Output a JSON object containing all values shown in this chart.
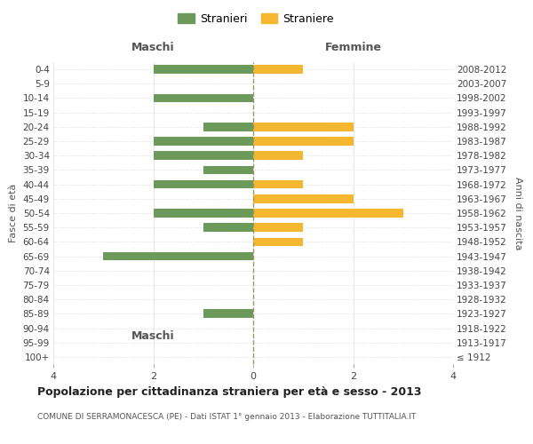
{
  "age_groups": [
    "100+",
    "95-99",
    "90-94",
    "85-89",
    "80-84",
    "75-79",
    "70-74",
    "65-69",
    "60-64",
    "55-59",
    "50-54",
    "45-49",
    "40-44",
    "35-39",
    "30-34",
    "25-29",
    "20-24",
    "15-19",
    "10-14",
    "5-9",
    "0-4"
  ],
  "birth_years": [
    "≤ 1912",
    "1913-1917",
    "1918-1922",
    "1923-1927",
    "1928-1932",
    "1933-1937",
    "1938-1942",
    "1943-1947",
    "1948-1952",
    "1953-1957",
    "1958-1962",
    "1963-1967",
    "1968-1972",
    "1973-1977",
    "1978-1982",
    "1983-1987",
    "1988-1992",
    "1993-1997",
    "1998-2002",
    "2003-2007",
    "2008-2012"
  ],
  "maschi": [
    0,
    0,
    0,
    1,
    0,
    0,
    0,
    3,
    0,
    1,
    2,
    0,
    2,
    1,
    2,
    2,
    1,
    0,
    2,
    0,
    2
  ],
  "femmine": [
    0,
    0,
    0,
    0,
    0,
    0,
    0,
    0,
    1,
    1,
    3,
    2,
    1,
    0,
    1,
    2,
    2,
    0,
    0,
    0,
    1
  ],
  "maschi_color": "#6B9A5B",
  "femmine_color": "#F5B730",
  "title": "Popolazione per cittadinanza straniera per età e sesso - 2013",
  "subtitle": "COMUNE DI SERRAMONACESCA (PE) - Dati ISTAT 1° gennaio 2013 - Elaborazione TUTTITALIA.IT",
  "legend_maschi": "Stranieri",
  "legend_femmine": "Straniere",
  "xlabel_left": "Maschi",
  "xlabel_right": "Femmine",
  "ylabel_left": "Fasce di età",
  "ylabel_right": "Anni di nascita",
  "xlim": 4,
  "background_color": "#ffffff",
  "grid_color": "#dddddd"
}
